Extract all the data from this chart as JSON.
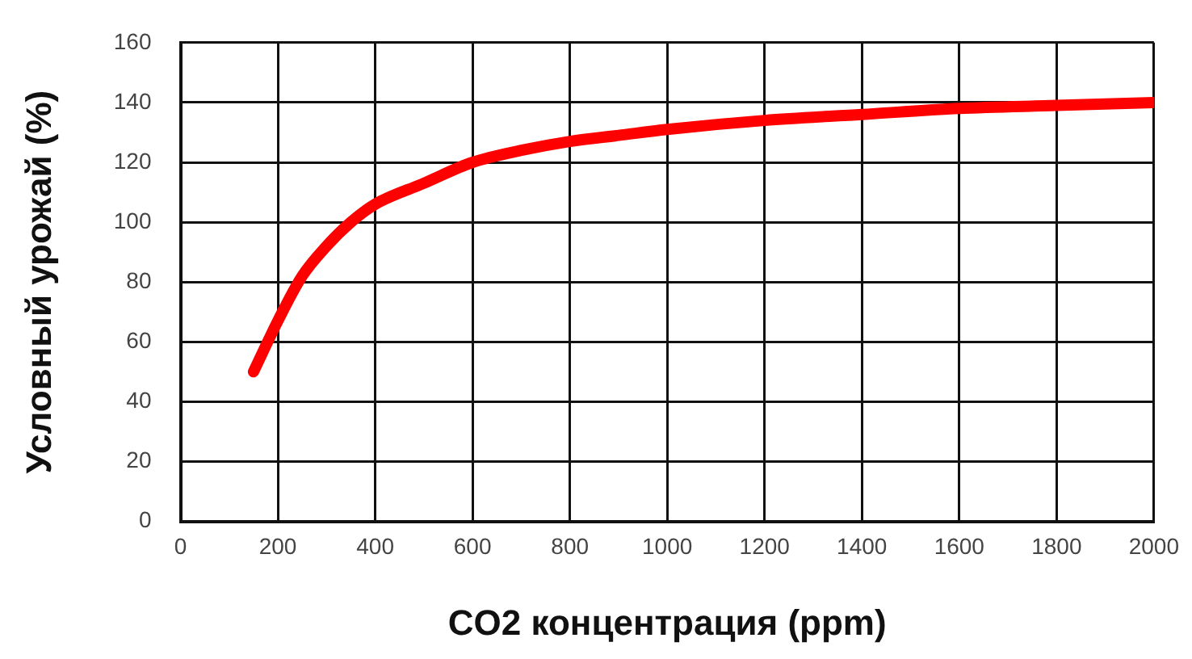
{
  "chart_data": {
    "type": "line",
    "xlabel": "CO2 концентрация (ppm)",
    "ylabel": "Условный урожай (%)",
    "x": [
      150,
      200,
      250,
      300,
      350,
      400,
      500,
      600,
      700,
      800,
      900,
      1000,
      1200,
      1400,
      1600,
      1800,
      2000
    ],
    "series": [
      {
        "color": "#ff0000",
        "values": [
          50,
          67,
          82,
          92,
          100,
          106,
          113,
          120,
          124,
          127,
          129,
          131,
          134,
          136,
          138,
          139,
          140
        ]
      }
    ],
    "xlim": [
      0,
      2000
    ],
    "xticks": [
      0,
      200,
      400,
      600,
      800,
      1000,
      1200,
      1400,
      1600,
      1800,
      2000
    ],
    "ylim": [
      0,
      160
    ],
    "yticks": [
      0,
      20,
      40,
      60,
      80,
      100,
      120,
      140,
      160
    ],
    "grid": true,
    "legend": false,
    "marker": "none",
    "line_style": "solid"
  }
}
